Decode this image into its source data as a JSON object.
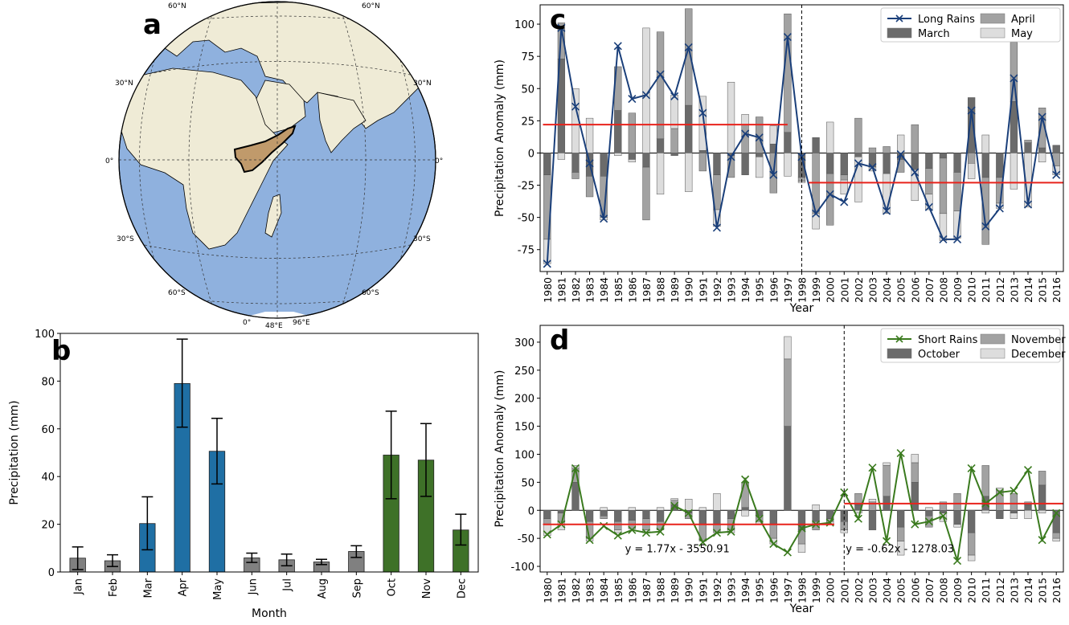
{
  "panels": {
    "a": "a",
    "b": "b",
    "c": "c",
    "d": "d"
  },
  "map": {
    "lat_labels": [
      "60°N",
      "30°N",
      "0°",
      "30°S",
      "60°S"
    ],
    "lon_labels": [
      "0°",
      "48°E",
      "96°E"
    ],
    "colors": {
      "ocean": "#8fb1de",
      "land": "#efebd6",
      "region": "#c09a6b"
    }
  },
  "chart_data": [
    {
      "panel": "b",
      "type": "bar",
      "xlabel": "Month",
      "ylabel": "Precipitation (mm)",
      "ylim": [
        0,
        100
      ],
      "yticks": [
        0,
        20,
        40,
        60,
        80,
        100
      ],
      "categories": [
        "Jan",
        "Feb",
        "Mar",
        "Apr",
        "May",
        "Jun",
        "Jul",
        "Aug",
        "Sep",
        "Oct",
        "Nov",
        "Dec"
      ],
      "values": [
        5.8,
        4.7,
        20.3,
        79.0,
        50.6,
        5.9,
        5.1,
        4.2,
        8.6,
        49.0,
        46.9,
        17.6
      ],
      "error_low": [
        1.0,
        2.3,
        9.3,
        60.7,
        36.9,
        4.0,
        2.6,
        3.1,
        6.1,
        30.7,
        31.7,
        11.3
      ],
      "error_high": [
        10.5,
        7.2,
        31.5,
        97.6,
        64.4,
        7.9,
        7.5,
        5.3,
        11.0,
        67.4,
        62.2,
        24.2
      ],
      "colors": [
        "#808080",
        "#808080",
        "#1f6fa4",
        "#1f6fa4",
        "#1f6fa4",
        "#808080",
        "#808080",
        "#808080",
        "#808080",
        "#3e7128",
        "#3e7128",
        "#3e7128"
      ]
    },
    {
      "panel": "c",
      "type": "bar",
      "xlabel": "Year",
      "ylabel": "Precipitation Anomaly (mm)",
      "ylim": [
        -92,
        115
      ],
      "yticks": [
        -75,
        -50,
        -25,
        0,
        25,
        50,
        75,
        100
      ],
      "x": [
        1980,
        1981,
        1982,
        1983,
        1984,
        1985,
        1986,
        1987,
        1988,
        1989,
        1990,
        1991,
        1992,
        1993,
        1994,
        1995,
        1996,
        1997,
        1998,
        1999,
        2000,
        2001,
        2002,
        2003,
        2004,
        2005,
        2006,
        2007,
        2008,
        2009,
        2010,
        2011,
        2012,
        2013,
        2014,
        2015,
        2016
      ],
      "legend": [
        "Long Rains",
        "March",
        "April",
        "May"
      ],
      "series": [
        {
          "name": "March",
          "color": "#6b6b6b",
          "values": [
            -17,
            73,
            -15,
            -18,
            -18,
            33,
            -5,
            -11,
            11,
            -2,
            37,
            2,
            -17,
            -2,
            -17,
            -3,
            7,
            16,
            -19,
            12,
            -16,
            -17,
            -3,
            -11,
            -16,
            -5,
            -13,
            -12,
            -4,
            -15,
            43,
            -19,
            -19,
            40,
            8,
            4,
            6
          ]
        },
        {
          "name": "April",
          "color": "#a2a2a2",
          "values": [
            -50,
            28,
            -5,
            -16,
            -32,
            34,
            31,
            -41,
            83,
            19,
            75,
            -14,
            -27,
            -17,
            22,
            28,
            -31,
            92,
            -3,
            -47,
            -40,
            -4,
            27,
            4,
            5,
            -10,
            22,
            -20,
            -43,
            -30,
            -8,
            -52,
            -20,
            46,
            2,
            31,
            -10
          ]
        },
        {
          "name": "May",
          "color": "#dddddd",
          "values": [
            -19,
            -5,
            50,
            27,
            -2,
            -2,
            -2,
            97,
            -32,
            26,
            -30,
            42,
            -13,
            55,
            8,
            -16,
            14,
            -18,
            -1,
            -12,
            24,
            -11,
            -35,
            -3,
            -31,
            14,
            -24,
            -12,
            -21,
            -21,
            -12,
            14,
            -4,
            -28,
            -42,
            -7,
            -7
          ]
        },
        {
          "name": "Long Rains",
          "color": "#1a3f7a",
          "values": [
            -86,
            97,
            36,
            -8,
            -51,
            83,
            42,
            45,
            61,
            44,
            82,
            31,
            -58,
            -3,
            15,
            12,
            -17,
            90,
            -3,
            -47,
            -32,
            -38,
            -8,
            -11,
            -45,
            -1,
            -15,
            -42,
            -67,
            -67,
            33,
            -57,
            -43,
            58,
            -40,
            28,
            -17
          ]
        }
      ],
      "mean_lines": [
        {
          "from": 1980,
          "to": 1997,
          "value": 22
        },
        {
          "from": 1998.8,
          "to": 2016.5,
          "value": -23
        }
      ],
      "vline": 1998
    },
    {
      "panel": "d",
      "type": "bar",
      "xlabel": "Year",
      "ylabel": "Precipitation Anomaly (mm)",
      "ylim": [
        -110,
        330
      ],
      "yticks": [
        -100,
        -50,
        0,
        50,
        100,
        150,
        200,
        250,
        300
      ],
      "x": [
        1980,
        1981,
        1982,
        1983,
        1984,
        1985,
        1986,
        1987,
        1988,
        1989,
        1990,
        1991,
        1992,
        1993,
        1994,
        1995,
        1996,
        1997,
        1998,
        1999,
        2000,
        2001,
        2002,
        2003,
        2004,
        2005,
        2006,
        2007,
        2008,
        2009,
        2010,
        2011,
        2012,
        2013,
        2014,
        2015,
        2016
      ],
      "legend": [
        "Short Rains",
        "October",
        "November",
        "December"
      ],
      "series": [
        {
          "name": "October",
          "color": "#6b6b6b",
          "values": [
            -15,
            -5,
            50,
            -20,
            -10,
            -20,
            -18,
            -15,
            -20,
            10,
            -5,
            -25,
            -25,
            -15,
            5,
            -10,
            -25,
            150,
            -35,
            -20,
            -15,
            -20,
            10,
            -35,
            25,
            -30,
            50,
            -10,
            -5,
            -25,
            -40,
            25,
            -15,
            -5,
            10,
            45,
            -40
          ]
        },
        {
          "name": "November",
          "color": "#a2a2a2",
          "values": [
            -10,
            -15,
            25,
            -30,
            -5,
            -15,
            -15,
            -20,
            -15,
            8,
            -10,
            -30,
            -15,
            -20,
            45,
            -10,
            -25,
            120,
            -25,
            -15,
            -5,
            -15,
            20,
            15,
            55,
            -25,
            35,
            -20,
            15,
            30,
            -40,
            55,
            35,
            30,
            5,
            25,
            -10
          ]
        },
        {
          "name": "December",
          "color": "#dddddd",
          "values": [
            -20,
            -15,
            5,
            -5,
            5,
            -5,
            5,
            -5,
            5,
            3,
            20,
            5,
            30,
            -5,
            -10,
            -5,
            -10,
            40,
            -15,
            10,
            -5,
            -5,
            -5,
            5,
            5,
            -25,
            15,
            5,
            -15,
            -5,
            -10,
            -5,
            5,
            -10,
            -15,
            -5,
            -5
          ]
        },
        {
          "name": "Short Rains",
          "color": "#3a7a1e",
          "values": [
            -43,
            -25,
            75,
            -53,
            -28,
            -45,
            -35,
            -40,
            -38,
            8,
            -5,
            -57,
            -40,
            -38,
            55,
            -15,
            -60,
            -75,
            -32,
            -25,
            -22,
            32,
            -15,
            76,
            -55,
            102,
            -25,
            -20,
            -10,
            -90,
            75,
            12,
            32,
            35,
            72,
            -53,
            -5
          ]
        }
      ],
      "mean_lines": [
        {
          "from": 1980,
          "to": 2000.3,
          "value": -25
        },
        {
          "from": 2001.3,
          "to": 2016.5,
          "value": 12
        }
      ],
      "vline": 2001,
      "annotations": [
        "y = 1.77x - 3550.91",
        "y = -0.62x - 1278.03"
      ]
    }
  ]
}
